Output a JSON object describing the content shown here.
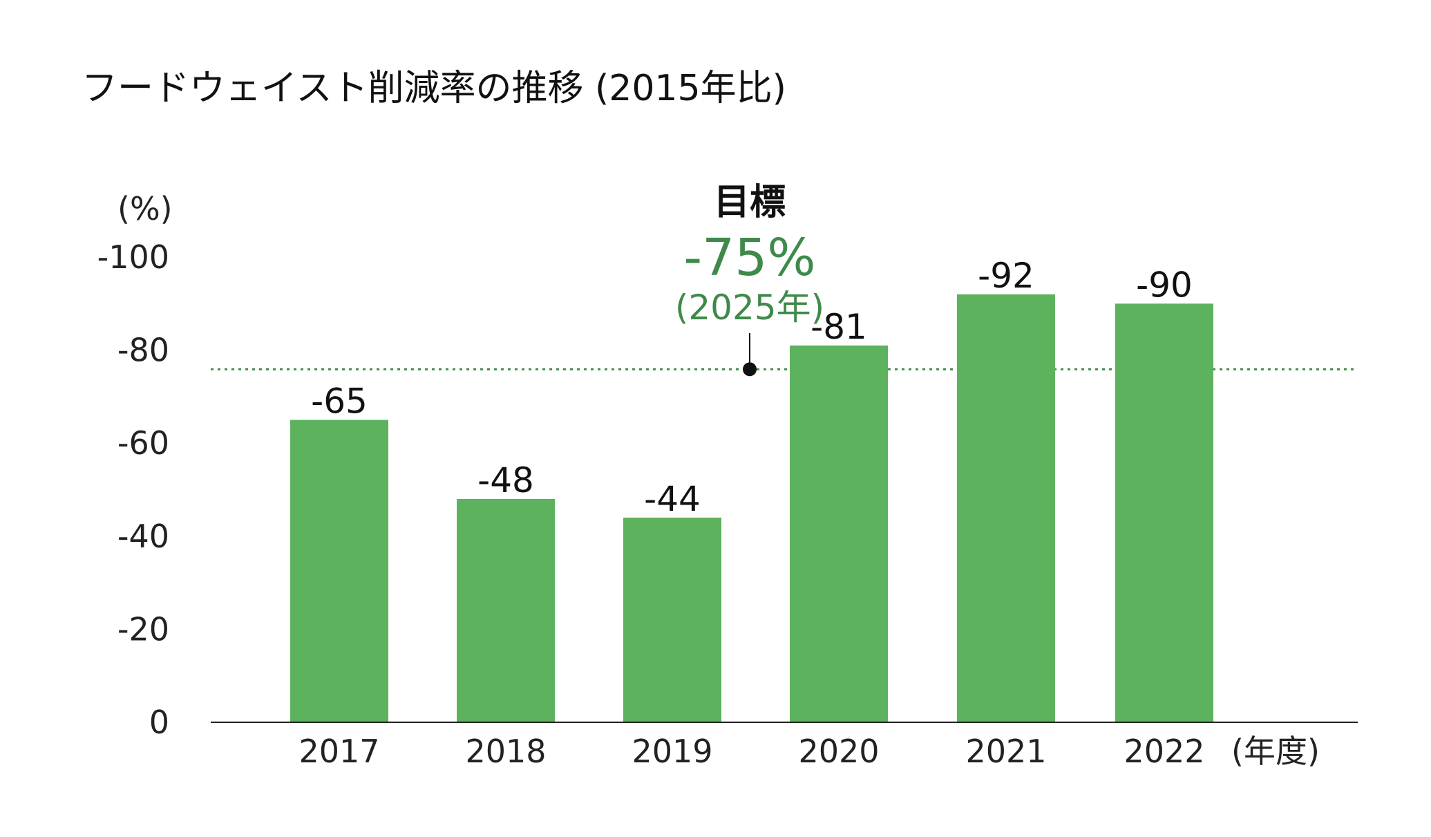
{
  "colors": {
    "bar": "#5cb25d",
    "target": "#3f8a4a",
    "axis": "#222222",
    "text": "#111111"
  },
  "chart_data": {
    "type": "bar",
    "title": "フードウェイスト削減率の推移 (2015年比)",
    "ylabel": "(%)",
    "xlabel": "(年度)",
    "categories": [
      "2017",
      "2018",
      "2019",
      "2020",
      "2021",
      "2022"
    ],
    "values": [
      -65,
      -48,
      -44,
      -81,
      -92,
      -90
    ],
    "value_labels": [
      "-65",
      "-48",
      "-44",
      "-81",
      "-92",
      "-90"
    ],
    "ylim": [
      0,
      -100
    ],
    "yticks": [
      0,
      -20,
      -40,
      -60,
      -80,
      -100
    ],
    "ytick_labels": [
      "0",
      "-20",
      "-40",
      "-60",
      "-80",
      "-100"
    ],
    "grid": false,
    "target": {
      "label": "目標",
      "value": -75,
      "value_label": "-75%",
      "year_label": "(2025年)"
    }
  }
}
